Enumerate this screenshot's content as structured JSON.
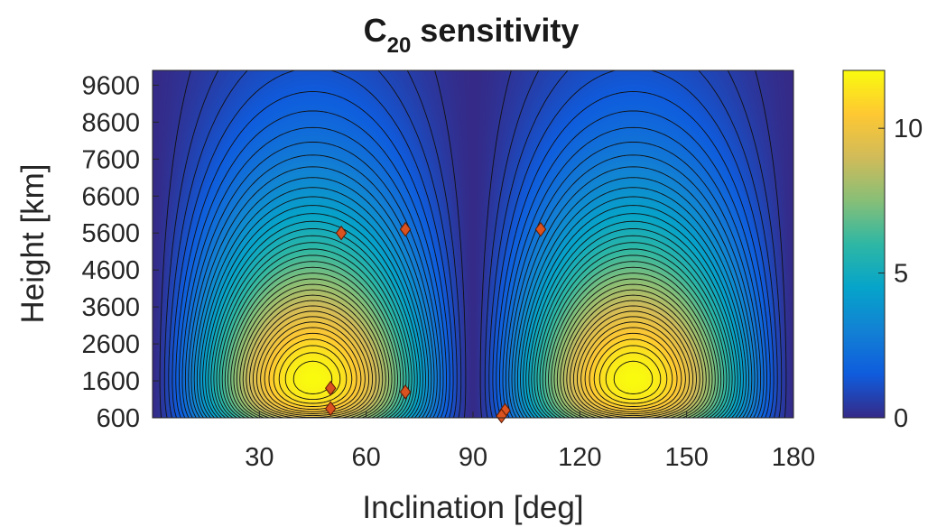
{
  "chart_data": {
    "type": "heatmap",
    "title": {
      "main": "C",
      "subscript": "20",
      "rest": " sensitivity"
    },
    "xlabel": "Inclination [deg]",
    "ylabel": "Height [km]",
    "xlim": [
      0,
      180
    ],
    "ylim": [
      600,
      10000
    ],
    "x_ticks": [
      30,
      60,
      90,
      120,
      150,
      180
    ],
    "x_tick_labels": [
      "30",
      "60",
      "90",
      "120",
      "150",
      "180"
    ],
    "y_ticks": [
      600,
      1600,
      2600,
      3600,
      4600,
      5600,
      6600,
      7600,
      8600,
      9600
    ],
    "y_tick_labels": [
      "600",
      "1600",
      "2600",
      "3600",
      "4600",
      "5600",
      "6600",
      "7600",
      "8600",
      "9600"
    ],
    "colorbar": {
      "colormap": "parula",
      "range": [
        0,
        12
      ],
      "ticks": [
        0,
        5,
        10
      ],
      "tick_labels": [
        "0",
        "5",
        "10"
      ]
    },
    "contours": "black contour lines",
    "field_peaks": [
      {
        "inclination": 47,
        "height": 1650,
        "value": 12
      },
      {
        "inclination": 135,
        "height": 1650,
        "value": 12
      }
    ],
    "markers": {
      "shape": "diamond",
      "color": "#d9521f",
      "points": [
        {
          "x": 53,
          "y": 5600
        },
        {
          "x": 71,
          "y": 5700
        },
        {
          "x": 50,
          "y": 1400
        },
        {
          "x": 71,
          "y": 1300
        },
        {
          "x": 50,
          "y": 850
        },
        {
          "x": 99,
          "y": 800
        },
        {
          "x": 98,
          "y": 650
        },
        {
          "x": 109,
          "y": 5700
        }
      ]
    }
  }
}
